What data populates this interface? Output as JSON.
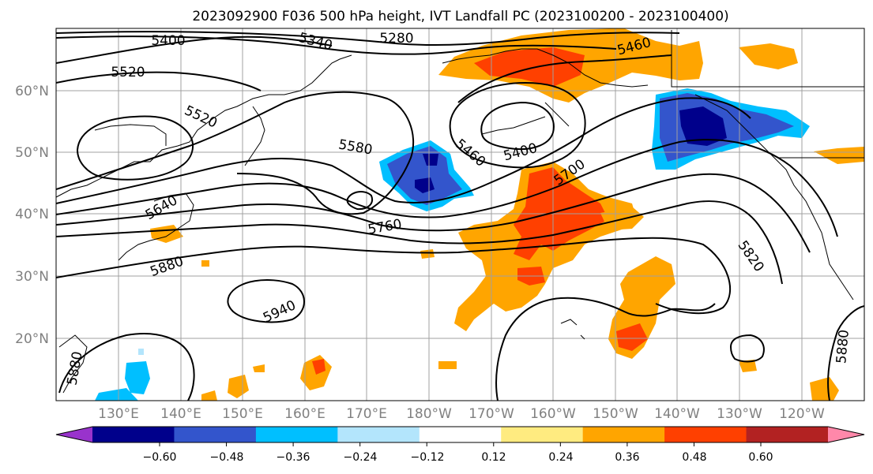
{
  "title": "2023092900 F036 500 hPa height, IVT Landfall PC (2023100200 - 2023100400)",
  "map": {
    "lat_labels": [
      "60°N",
      "50°N",
      "40°N",
      "30°N",
      "20°N"
    ],
    "lon_labels": [
      "130°E",
      "140°E",
      "150°E",
      "160°E",
      "170°E",
      "180°W",
      "170°W",
      "160°W",
      "150°W",
      "140°W",
      "130°W",
      "120°W"
    ],
    "contour_labels": [
      "5400",
      "5340",
      "5280",
      "5460",
      "5520",
      "5520",
      "5580",
      "5460",
      "5400",
      "5700",
      "5640",
      "5760",
      "5880",
      "5820",
      "5940",
      "5880",
      "5880"
    ]
  },
  "colorbar": {
    "colors": [
      "#9933cc",
      "#00008b",
      "#3355cc",
      "#00bfff",
      "#b3e5fc",
      "#ffffff",
      "#ffeb80",
      "#ffa500",
      "#ff4000",
      "#b22222",
      "#ff88aa"
    ],
    "tick_labels": [
      "−0.60",
      "−0.48",
      "−0.36",
      "−0.24",
      "−0.12",
      "0.12",
      "0.24",
      "0.36",
      "0.48",
      "0.60"
    ]
  }
}
